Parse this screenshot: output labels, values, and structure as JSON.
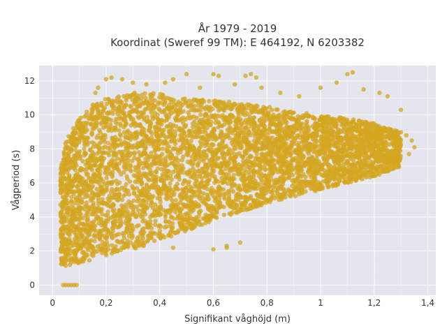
{
  "chart_data": {
    "type": "scatter",
    "title_lines": [
      "År 1979 - 2019",
      "Koordinat (Sweref 99 TM): E 464192, N 6203382"
    ],
    "xlabel": "Signifikant våghöjd (m)",
    "ylabel": "Vågperiod (s)",
    "xlim": [
      -0.05,
      1.43
    ],
    "ylim": [
      -0.6,
      12.9
    ],
    "x_ticks": [
      0,
      0.2,
      0.4,
      0.6,
      0.8,
      1,
      1.2,
      1.4
    ],
    "x_tick_labels": [
      "0",
      "0,2",
      "0,4",
      "0,6",
      "0,8",
      "1",
      "1,2",
      "1,4"
    ],
    "y_ticks": [
      0,
      2,
      4,
      6,
      8,
      10,
      12
    ],
    "y_tick_labels": [
      "0",
      "2",
      "4",
      "6",
      "8",
      "10",
      "12"
    ],
    "grid": true,
    "background_color": "#e5e5ee",
    "marker_color": "#d4a520",
    "series": [
      {
        "cloud_envelope": {
          "x": [
            0.03,
            0.05,
            0.1,
            0.15,
            0.2,
            0.3,
            0.4,
            0.5,
            0.6,
            0.7,
            0.8,
            0.9,
            1.0,
            1.1,
            1.2,
            1.3
          ],
          "y_lower": [
            1.2,
            1.1,
            1.3,
            1.5,
            1.7,
            2.1,
            2.6,
            3.2,
            3.8,
            4.3,
            4.8,
            5.2,
            5.6,
            6.0,
            6.4,
            6.9
          ],
          "y_upper": [
            7.0,
            8.5,
            9.8,
            10.5,
            11.0,
            11.3,
            11.3,
            11.0,
            10.9,
            10.7,
            10.5,
            10.2,
            10.0,
            9.8,
            9.5,
            9.0
          ]
        },
        "points": [
          [
            0.03,
            5.9
          ],
          [
            0.05,
            6.8
          ],
          [
            0.06,
            7.6
          ],
          [
            0.07,
            8.4
          ],
          [
            0.08,
            8.6
          ],
          [
            0.1,
            9.2
          ],
          [
            0.12,
            9.9
          ],
          [
            0.15,
            10.6
          ],
          [
            0.16,
            11.3
          ],
          [
            0.17,
            11.6
          ],
          [
            0.2,
            12.1
          ],
          [
            0.22,
            12.2
          ],
          [
            0.26,
            12.1
          ],
          [
            0.3,
            11.9
          ],
          [
            0.35,
            11.8
          ],
          [
            0.42,
            11.9
          ],
          [
            0.5,
            12.4
          ],
          [
            0.45,
            12.1
          ],
          [
            0.55,
            11.6
          ],
          [
            0.6,
            12.4
          ],
          [
            0.62,
            12.3
          ],
          [
            0.68,
            11.8
          ],
          [
            0.72,
            12.3
          ],
          [
            0.74,
            12.4
          ],
          [
            0.76,
            12.2
          ],
          [
            0.78,
            11.6
          ],
          [
            0.85,
            11.3
          ],
          [
            0.92,
            11.1
          ],
          [
            1.0,
            11.6
          ],
          [
            1.06,
            11.9
          ],
          [
            1.1,
            12.4
          ],
          [
            1.12,
            12.5
          ],
          [
            1.16,
            11.5
          ],
          [
            1.22,
            11.3
          ],
          [
            1.25,
            11.1
          ],
          [
            1.3,
            10.3
          ],
          [
            1.32,
            8.8
          ],
          [
            1.34,
            8.5
          ],
          [
            1.35,
            8.1
          ],
          [
            1.33,
            7.7
          ],
          [
            1.28,
            7.4
          ],
          [
            0.04,
            0.0
          ],
          [
            0.05,
            0.0
          ],
          [
            0.06,
            0.0
          ],
          [
            0.07,
            0.0
          ],
          [
            0.08,
            0.0
          ],
          [
            0.09,
            0.0
          ],
          [
            0.33,
            2.4
          ],
          [
            0.38,
            2.6
          ],
          [
            0.45,
            2.2
          ],
          [
            0.6,
            2.1
          ],
          [
            0.65,
            2.3
          ],
          [
            0.7,
            2.5
          ],
          [
            0.65,
            2.2
          ]
        ]
      }
    ]
  }
}
